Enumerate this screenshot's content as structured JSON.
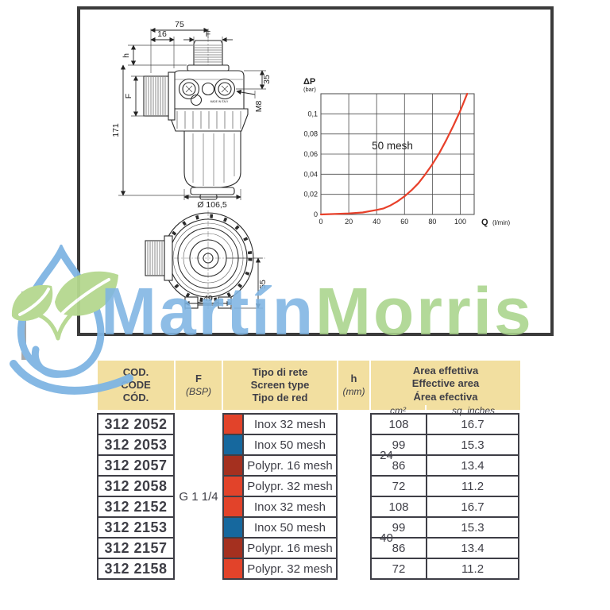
{
  "drawing": {
    "dimensions": {
      "top_width": "75",
      "top_offset": "16",
      "top_port": "F",
      "neck_height": "h",
      "side_port": "F",
      "overall_height": "171",
      "port_offset": "35",
      "bolt_thread": "M8",
      "bowl_diameter": "Ø 106,5",
      "front_height": "55",
      "front_width": "49"
    },
    "made_in": "MADE IN ITALY"
  },
  "chart_data": {
    "type": "line",
    "title": "",
    "ylabel": "ΔP",
    "ylabel_unit": "(bar)",
    "xlabel": "Q",
    "xlabel_unit": "(l/min)",
    "xlim": [
      0,
      110
    ],
    "ylim": [
      0,
      0.12
    ],
    "grid": true,
    "annotation": "50 mesh",
    "line_color": "#e8402a",
    "x_ticks": [
      0,
      20,
      40,
      60,
      80,
      100
    ],
    "y_ticks": [
      {
        "v": 0,
        "label": "0"
      },
      {
        "v": 0.02,
        "label": "0,02"
      },
      {
        "v": 0.04,
        "label": "0,04"
      },
      {
        "v": 0.06,
        "label": "0,06"
      },
      {
        "v": 0.08,
        "label": "0,08"
      },
      {
        "v": 0.1,
        "label": "0,1"
      }
    ],
    "series": [
      {
        "name": "50 mesh",
        "x": [
          0,
          10,
          20,
          30,
          40,
          45,
          50,
          55,
          60,
          65,
          70,
          75,
          80,
          85,
          90,
          95,
          100,
          105
        ],
        "y": [
          0,
          0.0005,
          0.001,
          0.002,
          0.0045,
          0.006,
          0.009,
          0.013,
          0.018,
          0.024,
          0.031,
          0.04,
          0.05,
          0.061,
          0.074,
          0.088,
          0.103,
          0.12
        ]
      }
    ]
  },
  "watermark": {
    "part1": "Martín",
    "part2": "Morris",
    "color1": "#7fb5e3",
    "color2": "#a9d48b"
  },
  "table": {
    "header": {
      "code_lines": [
        "COD.",
        "CODE",
        "CÓD."
      ],
      "f": "F",
      "f_sub": "(BSP)",
      "screen_lines": [
        "Tipo di rete",
        "Screen type",
        "Tipo de red"
      ],
      "h": "h",
      "h_sub": "(mm)",
      "area_lines": [
        "Area effettiva",
        "Effective area",
        "Área efectiva"
      ],
      "unit_cm2": "cm²",
      "unit_sqin": "sq. inches"
    },
    "f_value": "G 1 1/4",
    "groups": [
      {
        "h": "24"
      },
      {
        "h": "40"
      }
    ],
    "swatch_colors": {
      "red": "#e2432a",
      "blue": "#16689e",
      "dark_red": "#a5301f"
    },
    "rows": [
      {
        "code": "312 2052",
        "swatch": "#e2432a",
        "screen": "Inox 32 mesh",
        "h_group": 0,
        "cm2": "108",
        "sq_inches": "16.7"
      },
      {
        "code": "312 2053",
        "swatch": "#16689e",
        "screen": "Inox 50 mesh",
        "h_group": 0,
        "cm2": "99",
        "sq_inches": "15.3"
      },
      {
        "code": "312 2057",
        "swatch": "#a5301f",
        "screen": "Polypr. 16 mesh",
        "h_group": 0,
        "cm2": "86",
        "sq_inches": "13.4"
      },
      {
        "code": "312 2058",
        "swatch": "#e2432a",
        "screen": "Polypr. 32 mesh",
        "h_group": 0,
        "cm2": "72",
        "sq_inches": "11.2"
      },
      {
        "code": "312 2152",
        "swatch": "#e2432a",
        "screen": "Inox 32 mesh",
        "h_group": 1,
        "cm2": "108",
        "sq_inches": "16.7"
      },
      {
        "code": "312 2153",
        "swatch": "#16689e",
        "screen": "Inox 50 mesh",
        "h_group": 1,
        "cm2": "99",
        "sq_inches": "15.3"
      },
      {
        "code": "312 2157",
        "swatch": "#a5301f",
        "screen": "Polypr. 16 mesh",
        "h_group": 1,
        "cm2": "86",
        "sq_inches": "13.4"
      },
      {
        "code": "312 2158",
        "swatch": "#e2432a",
        "screen": "Polypr. 32 mesh",
        "h_group": 1,
        "cm2": "72",
        "sq_inches": "11.2"
      }
    ]
  }
}
